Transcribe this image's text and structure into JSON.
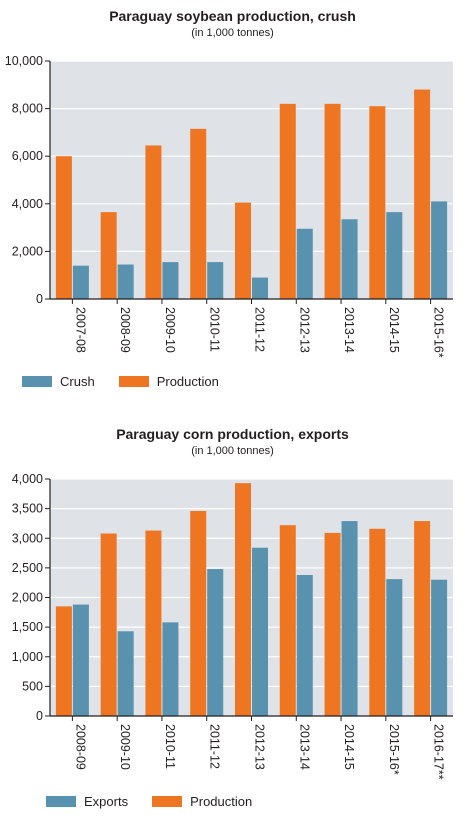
{
  "colors": {
    "production": "#ee7623",
    "secondary": "#5892ae",
    "plot_bg": "#dfe2e6",
    "grid": "#ffffff",
    "axis": "#231f20"
  },
  "chart_data": [
    {
      "type": "bar",
      "title": "Paraguay soybean production, crush",
      "subtitle": "(in 1,000 tonnes)",
      "categories": [
        "2007-08",
        "2008-09",
        "2009-10",
        "2010-11",
        "2011-12",
        "2012-13",
        "2013-14",
        "2014-15",
        "2015-16*"
      ],
      "series": [
        {
          "name": "Production",
          "color": "#ee7623",
          "values": [
            6000,
            3650,
            6450,
            7150,
            4050,
            8200,
            8200,
            8100,
            8800
          ]
        },
        {
          "name": "Crush",
          "color": "#5892ae",
          "values": [
            1400,
            1450,
            1550,
            1550,
            900,
            2950,
            3350,
            3650,
            4100
          ]
        }
      ],
      "bar_order": [
        "Production",
        "Crush"
      ],
      "legend_order": [
        "Crush",
        "Production"
      ],
      "ylim": [
        0,
        10000
      ],
      "yticks": [
        0,
        2000,
        4000,
        6000,
        8000,
        10000
      ],
      "ytick_labels": [
        "0",
        "2,000",
        "4,000",
        "6,000",
        "8,000",
        "10,000"
      ],
      "grid": true,
      "legend": "bottom-left"
    },
    {
      "type": "bar",
      "title": "Paraguay corn production, exports",
      "subtitle": "(in 1,000 tonnes)",
      "categories": [
        "2008-09",
        "2009-10",
        "2010-11",
        "2011-12",
        "2012-13",
        "2013-14",
        "2014-15",
        "2015-16*",
        "2016-17**"
      ],
      "series": [
        {
          "name": "Production",
          "color": "#ee7623",
          "values": [
            1850,
            3080,
            3130,
            3460,
            3930,
            3220,
            3090,
            3160,
            3290
          ]
        },
        {
          "name": "Exports",
          "color": "#5892ae",
          "values": [
            1880,
            1430,
            1580,
            2480,
            2840,
            2380,
            3290,
            2310,
            2300
          ]
        }
      ],
      "bar_order": [
        "Production",
        "Exports"
      ],
      "legend_order": [
        "Exports",
        "Production"
      ],
      "ylim": [
        0,
        4000
      ],
      "yticks": [
        0,
        500,
        1000,
        1500,
        2000,
        2500,
        3000,
        3500,
        4000
      ],
      "ytick_labels": [
        "0",
        "500",
        "1,000",
        "1,500",
        "2,000",
        "2,500",
        "3,000",
        "3,500",
        "4,000"
      ],
      "grid": true,
      "legend": "bottom-left"
    }
  ]
}
